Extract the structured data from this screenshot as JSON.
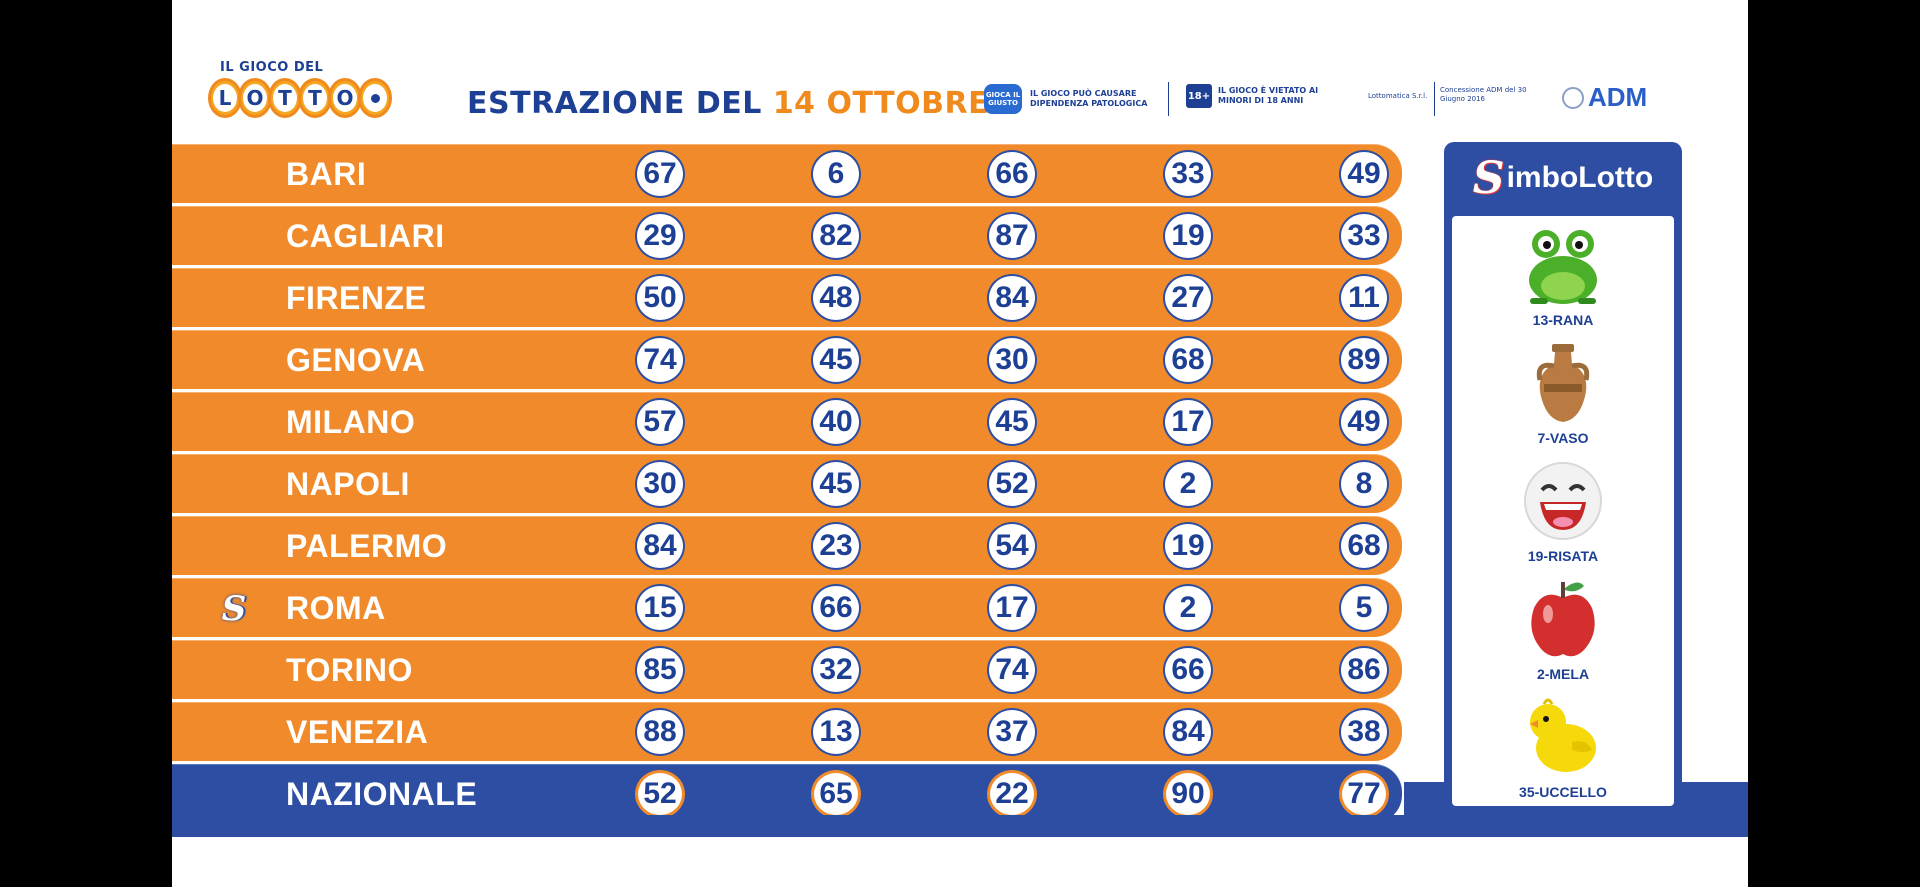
{
  "header": {
    "logo_top": "IL GIOCO DEL",
    "logo_letters": [
      "L",
      "O",
      "T",
      "T",
      "O"
    ],
    "title_prefix": "ESTRAZIONE DEL",
    "title_date": "14 OTTOBRE",
    "notice_pathology": "IL GIOCO PUÒ CAUSARE DIPENDENZA PATOLOGICA",
    "notice_pathology_icon": "GIOCA IL GIUSTO",
    "notice_minors_icon": "18+",
    "notice_minors": "IL GIOCO È VIETATO AI MINORI DI 18 ANNI",
    "operator": "Lottomatica S.r.l.",
    "concession": "Concessione ADM del 30 Giugno 2016",
    "regulator": "ADM"
  },
  "draws": [
    {
      "city": "BARI",
      "numbers": [
        "67",
        "6",
        "66",
        "33",
        "49"
      ],
      "simbolotto": false
    },
    {
      "city": "CAGLIARI",
      "numbers": [
        "29",
        "82",
        "87",
        "19",
        "33"
      ],
      "simbolotto": false
    },
    {
      "city": "FIRENZE",
      "numbers": [
        "50",
        "48",
        "84",
        "27",
        "11"
      ],
      "simbolotto": false
    },
    {
      "city": "GENOVA",
      "numbers": [
        "74",
        "45",
        "30",
        "68",
        "89"
      ],
      "simbolotto": false
    },
    {
      "city": "MILANO",
      "numbers": [
        "57",
        "40",
        "45",
        "17",
        "49"
      ],
      "simbolotto": false
    },
    {
      "city": "NAPOLI",
      "numbers": [
        "30",
        "45",
        "52",
        "2",
        "8"
      ],
      "simbolotto": false
    },
    {
      "city": "PALERMO",
      "numbers": [
        "84",
        "23",
        "54",
        "19",
        "68"
      ],
      "simbolotto": false
    },
    {
      "city": "ROMA",
      "numbers": [
        "15",
        "66",
        "17",
        "2",
        "5"
      ],
      "simbolotto": true
    },
    {
      "city": "TORINO",
      "numbers": [
        "85",
        "32",
        "74",
        "66",
        "86"
      ],
      "simbolotto": false
    },
    {
      "city": "VENEZIA",
      "numbers": [
        "88",
        "13",
        "37",
        "84",
        "38"
      ],
      "simbolotto": false
    },
    {
      "city": "NAZIONALE",
      "numbers": [
        "52",
        "65",
        "22",
        "90",
        "77"
      ],
      "simbolotto": false
    }
  ],
  "simbolotto": {
    "title": "imboLotto",
    "title_s": "S",
    "symbols": [
      {
        "label": "13-RANA",
        "icon": "frog-icon"
      },
      {
        "label": "7-VASO",
        "icon": "vase-icon"
      },
      {
        "label": "19-RISATA",
        "icon": "laughing-face-icon"
      },
      {
        "label": "2-MELA",
        "icon": "apple-icon"
      },
      {
        "label": "35-UCCELLO",
        "icon": "chick-icon"
      }
    ]
  },
  "colors": {
    "orange": "#f08a2a",
    "blue": "#2d4ea3",
    "navy_text": "#1d3f94"
  }
}
